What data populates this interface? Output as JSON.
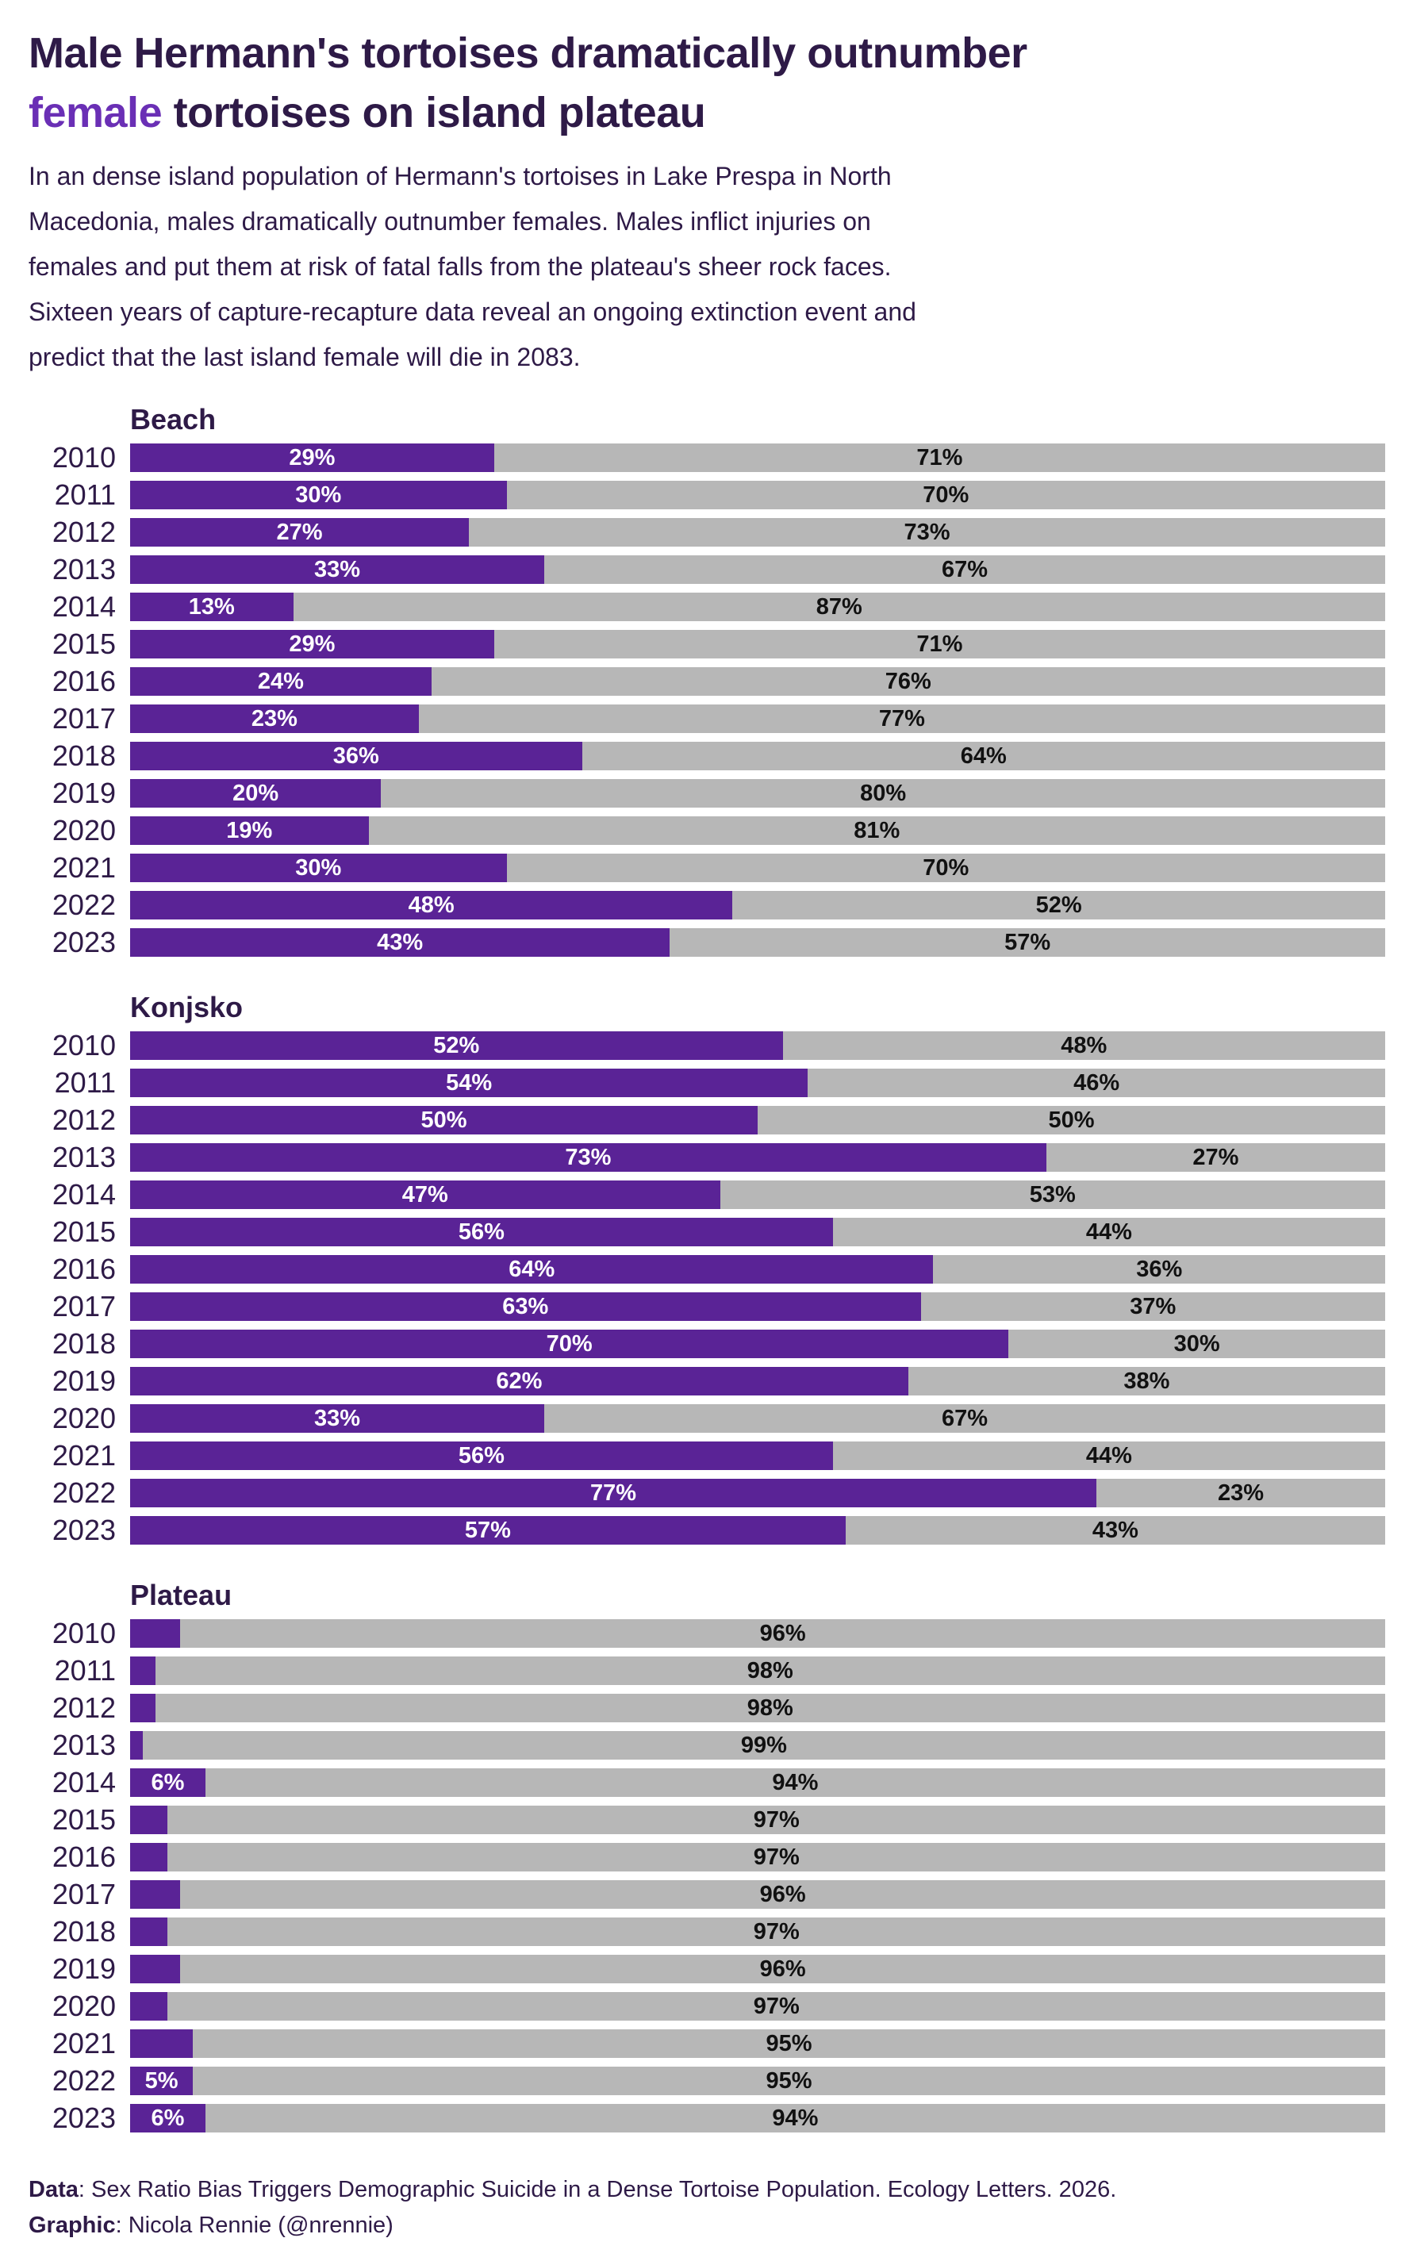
{
  "title": {
    "line1": "Male Hermann's tortoises dramatically outnumber",
    "accent_word": "female",
    "line2_rest": " tortoises on island plateau"
  },
  "subtitle_lines": [
    "In an dense island population of Hermann's tortoises in Lake Prespa in North",
    "Macedonia, males dramatically outnumber females. Males inflict injuries on",
    "females and put them at risk of fatal falls from the plateau's sheer rock faces.",
    "Sixteen years of capture-recapture data reveal an ongoing extinction event and",
    "predict that the last island female will die in 2083."
  ],
  "colors": {
    "dark_text": "#2e1a47",
    "accent_purple": "#6a2fb5",
    "female_bar": "#5a2396",
    "male_bar": "#b7b7b7",
    "male_label_text": "#111111"
  },
  "sections": [
    {
      "name": "Beach",
      "rows": [
        {
          "year": "2010",
          "female": 29,
          "male": 71,
          "female_label": "29%",
          "male_label": "71%"
        },
        {
          "year": "2011",
          "female": 30,
          "male": 70,
          "female_label": "30%",
          "male_label": "70%"
        },
        {
          "year": "2012",
          "female": 27,
          "male": 73,
          "female_label": "27%",
          "male_label": "73%"
        },
        {
          "year": "2013",
          "female": 33,
          "male": 67,
          "female_label": "33%",
          "male_label": "67%"
        },
        {
          "year": "2014",
          "female": 13,
          "male": 87,
          "female_label": "13%",
          "male_label": "87%"
        },
        {
          "year": "2015",
          "female": 29,
          "male": 71,
          "female_label": "29%",
          "male_label": "71%"
        },
        {
          "year": "2016",
          "female": 24,
          "male": 76,
          "female_label": "24%",
          "male_label": "76%"
        },
        {
          "year": "2017",
          "female": 23,
          "male": 77,
          "female_label": "23%",
          "male_label": "77%"
        },
        {
          "year": "2018",
          "female": 36,
          "male": 64,
          "female_label": "36%",
          "male_label": "64%"
        },
        {
          "year": "2019",
          "female": 20,
          "male": 80,
          "female_label": "20%",
          "male_label": "80%"
        },
        {
          "year": "2020",
          "female": 19,
          "male": 81,
          "female_label": "19%",
          "male_label": "81%"
        },
        {
          "year": "2021",
          "female": 30,
          "male": 70,
          "female_label": "30%",
          "male_label": "70%"
        },
        {
          "year": "2022",
          "female": 48,
          "male": 52,
          "female_label": "48%",
          "male_label": "52%"
        },
        {
          "year": "2023",
          "female": 43,
          "male": 57,
          "female_label": "43%",
          "male_label": "57%"
        }
      ]
    },
    {
      "name": "Konjsko",
      "rows": [
        {
          "year": "2010",
          "female": 52,
          "male": 48,
          "female_label": "52%",
          "male_label": "48%"
        },
        {
          "year": "2011",
          "female": 54,
          "male": 46,
          "female_label": "54%",
          "male_label": "46%"
        },
        {
          "year": "2012",
          "female": 50,
          "male": 50,
          "female_label": "50%",
          "male_label": "50%"
        },
        {
          "year": "2013",
          "female": 73,
          "male": 27,
          "female_label": "73%",
          "male_label": "27%"
        },
        {
          "year": "2014",
          "female": 47,
          "male": 53,
          "female_label": "47%",
          "male_label": "53%"
        },
        {
          "year": "2015",
          "female": 56,
          "male": 44,
          "female_label": "56%",
          "male_label": "44%"
        },
        {
          "year": "2016",
          "female": 64,
          "male": 36,
          "female_label": "64%",
          "male_label": "36%"
        },
        {
          "year": "2017",
          "female": 63,
          "male": 37,
          "female_label": "63%",
          "male_label": "37%"
        },
        {
          "year": "2018",
          "female": 70,
          "male": 30,
          "female_label": "70%",
          "male_label": "30%"
        },
        {
          "year": "2019",
          "female": 62,
          "male": 38,
          "female_label": "62%",
          "male_label": "38%"
        },
        {
          "year": "2020",
          "female": 33,
          "male": 67,
          "female_label": "33%",
          "male_label": "67%"
        },
        {
          "year": "2021",
          "female": 56,
          "male": 44,
          "female_label": "56%",
          "male_label": "44%"
        },
        {
          "year": "2022",
          "female": 77,
          "male": 23,
          "female_label": "77%",
          "male_label": "23%"
        },
        {
          "year": "2023",
          "female": 57,
          "male": 43,
          "female_label": "57%",
          "male_label": "43%"
        }
      ]
    },
    {
      "name": "Plateau",
      "rows": [
        {
          "year": "2010",
          "female": 4,
          "male": 96,
          "female_label": "",
          "male_label": "96%"
        },
        {
          "year": "2011",
          "female": 2,
          "male": 98,
          "female_label": "",
          "male_label": "98%"
        },
        {
          "year": "2012",
          "female": 2,
          "male": 98,
          "female_label": "",
          "male_label": "98%"
        },
        {
          "year": "2013",
          "female": 1,
          "male": 99,
          "female_label": "",
          "male_label": "99%"
        },
        {
          "year": "2014",
          "female": 6,
          "male": 94,
          "female_label": "6%",
          "male_label": "94%"
        },
        {
          "year": "2015",
          "female": 3,
          "male": 97,
          "female_label": "",
          "male_label": "97%"
        },
        {
          "year": "2016",
          "female": 3,
          "male": 97,
          "female_label": "",
          "male_label": "97%"
        },
        {
          "year": "2017",
          "female": 4,
          "male": 96,
          "female_label": "",
          "male_label": "96%"
        },
        {
          "year": "2018",
          "female": 3,
          "male": 97,
          "female_label": "",
          "male_label": "97%"
        },
        {
          "year": "2019",
          "female": 4,
          "male": 96,
          "female_label": "",
          "male_label": "96%"
        },
        {
          "year": "2020",
          "female": 3,
          "male": 97,
          "female_label": "",
          "male_label": "97%"
        },
        {
          "year": "2021",
          "female": 5,
          "male": 95,
          "female_label": "",
          "male_label": "95%"
        },
        {
          "year": "2022",
          "female": 5,
          "male": 95,
          "female_label": "5%",
          "male_label": "95%"
        },
        {
          "year": "2023",
          "female": 6,
          "male": 94,
          "female_label": "6%",
          "male_label": "94%"
        }
      ]
    }
  ],
  "footer": {
    "data_label": "Data",
    "data_text": ": Sex Ratio Bias Triggers Demographic Suicide in a Dense Tortoise Population. Ecology Letters. 2026.",
    "graphic_label": "Graphic",
    "graphic_text": ": Nicola Rennie (@nrennie)"
  },
  "chart_data": [
    {
      "type": "bar",
      "orientation": "horizontal",
      "stacked": true,
      "units": "percent",
      "title": "Beach",
      "xlim": [
        0,
        100
      ],
      "categories": [
        "2010",
        "2011",
        "2012",
        "2013",
        "2014",
        "2015",
        "2016",
        "2017",
        "2018",
        "2019",
        "2020",
        "2021",
        "2022",
        "2023"
      ],
      "series": [
        {
          "name": "female",
          "color": "#5a2396",
          "values": [
            29,
            30,
            27,
            33,
            13,
            29,
            24,
            23,
            36,
            20,
            19,
            30,
            48,
            43
          ]
        },
        {
          "name": "male",
          "color": "#b7b7b7",
          "values": [
            71,
            70,
            73,
            67,
            87,
            71,
            76,
            77,
            64,
            80,
            81,
            70,
            52,
            57
          ]
        }
      ],
      "legend_position": "none"
    },
    {
      "type": "bar",
      "orientation": "horizontal",
      "stacked": true,
      "units": "percent",
      "title": "Konjsko",
      "xlim": [
        0,
        100
      ],
      "categories": [
        "2010",
        "2011",
        "2012",
        "2013",
        "2014",
        "2015",
        "2016",
        "2017",
        "2018",
        "2019",
        "2020",
        "2021",
        "2022",
        "2023"
      ],
      "series": [
        {
          "name": "female",
          "color": "#5a2396",
          "values": [
            52,
            54,
            50,
            73,
            47,
            56,
            64,
            63,
            70,
            62,
            33,
            56,
            77,
            57
          ]
        },
        {
          "name": "male",
          "color": "#b7b7b7",
          "values": [
            48,
            46,
            50,
            27,
            53,
            44,
            36,
            37,
            30,
            38,
            67,
            44,
            23,
            43
          ]
        }
      ],
      "legend_position": "none"
    },
    {
      "type": "bar",
      "orientation": "horizontal",
      "stacked": true,
      "units": "percent",
      "title": "Plateau",
      "xlim": [
        0,
        100
      ],
      "categories": [
        "2010",
        "2011",
        "2012",
        "2013",
        "2014",
        "2015",
        "2016",
        "2017",
        "2018",
        "2019",
        "2020",
        "2021",
        "2022",
        "2023"
      ],
      "series": [
        {
          "name": "female",
          "color": "#5a2396",
          "values": [
            4,
            2,
            2,
            1,
            6,
            3,
            3,
            4,
            3,
            4,
            3,
            5,
            5,
            6
          ]
        },
        {
          "name": "male",
          "color": "#b7b7b7",
          "values": [
            96,
            98,
            98,
            99,
            94,
            97,
            97,
            96,
            97,
            96,
            97,
            95,
            95,
            94
          ]
        }
      ],
      "legend_position": "none"
    }
  ]
}
